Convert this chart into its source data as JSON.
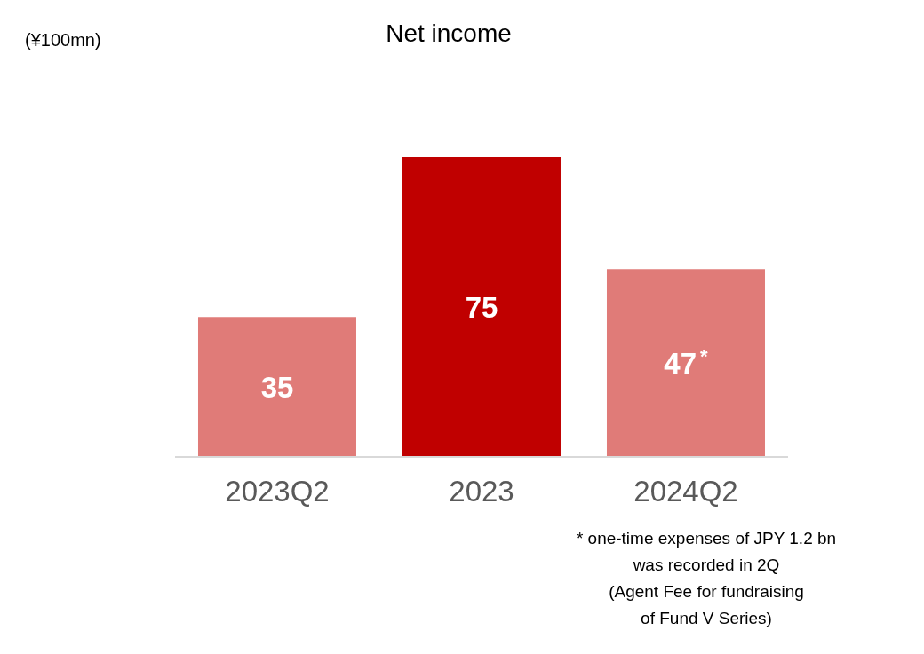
{
  "chart_data": {
    "type": "bar",
    "title": "Net income",
    "categories": [
      "2023Q2",
      "2023",
      "2024Q2"
    ],
    "values": [
      35,
      75,
      47
    ],
    "colors": [
      "#e07b78",
      "#c00000",
      "#e07b78"
    ],
    "value_labels": [
      "35",
      "75",
      "47$^{*}$"
    ],
    "annotations": [
      "(¥100mn)",
      "* one-time expenses of JPY 1.2 bn\nwas recorded in 2Q\n(Agent Fee for fundraising\nof Fund V Series)"
    ]
  }
}
